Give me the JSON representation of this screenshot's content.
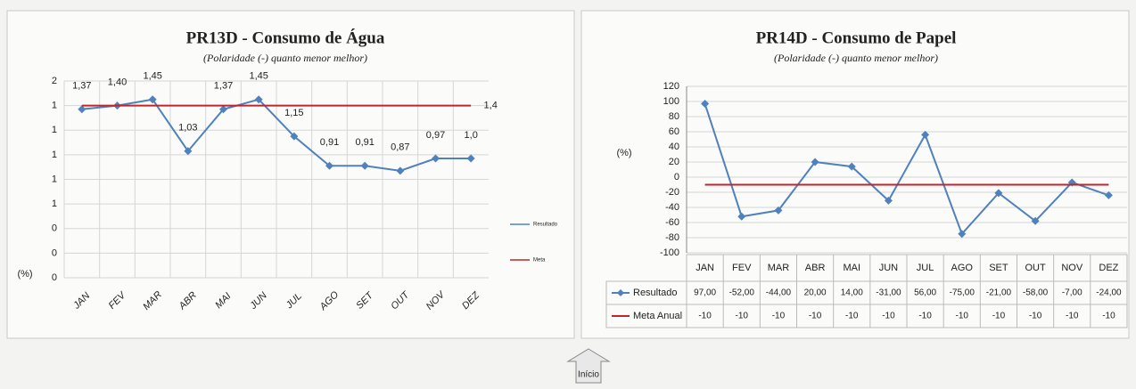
{
  "chart_data": [
    {
      "type": "line",
      "title": "PR13D - Consumo de Água",
      "subtitle": "(Polaridade (-) quanto menor melhor)",
      "y_label": "(%)",
      "categories": [
        "JAN",
        "FEV",
        "MAR",
        "ABR",
        "MAI",
        "JUN",
        "JUL",
        "AGO",
        "SET",
        "OUT",
        "NOV",
        "DEZ"
      ],
      "series": [
        {
          "name": "Resultado",
          "color": "#4f81bd",
          "values": [
            1.37,
            1.4,
            1.45,
            1.03,
            1.37,
            1.45,
            1.15,
            0.91,
            0.91,
            0.87,
            0.97,
            0.97
          ],
          "value_labels": [
            "1,37",
            "1,40",
            "1,45",
            "1,03",
            "1,37",
            "1,45",
            "1,15",
            "0,91",
            "0,91",
            "0,87",
            "0,97",
            "1,0"
          ]
        },
        {
          "name": "Meta",
          "color": "#c0262d",
          "values": [
            1.4,
            1.4,
            1.4,
            1.4,
            1.4,
            1.4,
            1.4,
            1.4,
            1.4,
            1.4,
            1.4,
            1.4
          ],
          "value_labels": [
            null,
            null,
            null,
            null,
            null,
            null,
            null,
            null,
            null,
            null,
            null,
            "1,4"
          ]
        }
      ],
      "ylim": [
        0,
        1.6
      ],
      "yticks": [
        {
          "value": 0,
          "label": "0"
        },
        {
          "value": 0.2,
          "label": "0"
        },
        {
          "value": 0.4,
          "label": "0"
        },
        {
          "value": 0.6,
          "label": "1"
        },
        {
          "value": 0.8,
          "label": "1"
        },
        {
          "value": 1.0,
          "label": "1"
        },
        {
          "value": 1.2,
          "label": "1"
        },
        {
          "value": 1.4,
          "label": "1"
        },
        {
          "value": 1.6,
          "label": "2"
        }
      ],
      "grid": true,
      "legend": "right"
    },
    {
      "type": "line",
      "title": "PR14D - Consumo de Papel",
      "subtitle": "(Polaridade (-) quanto menor melhor)",
      "y_label": "(%)",
      "categories": [
        "JAN",
        "FEV",
        "MAR",
        "ABR",
        "MAI",
        "JUN",
        "JUL",
        "AGO",
        "SET",
        "OUT",
        "NOV",
        "DEZ"
      ],
      "series": [
        {
          "name": "Resultado",
          "color": "#4f81bd",
          "values": [
            97,
            -52,
            -44,
            20,
            14,
            -31,
            56,
            -75,
            -21,
            -58,
            -7,
            -24
          ],
          "value_labels": [
            "97,00",
            "-52,00",
            "-44,00",
            "20,00",
            "14,00",
            "-31,00",
            "56,00",
            "-75,00",
            "-21,00",
            "-58,00",
            "-7,00",
            "-24,00"
          ]
        },
        {
          "name": "Meta Anual",
          "color": "#c0262d",
          "values": [
            -10,
            -10,
            -10,
            -10,
            -10,
            -10,
            -10,
            -10,
            -10,
            -10,
            -10,
            -10
          ]
        }
      ],
      "ylim": [
        -100,
        120
      ],
      "yticks": [
        -100,
        -80,
        -60,
        -40,
        -20,
        0,
        20,
        40,
        60,
        80,
        100,
        120
      ],
      "grid": true,
      "legend": "bottom",
      "data_table": true
    }
  ],
  "button": "Início"
}
